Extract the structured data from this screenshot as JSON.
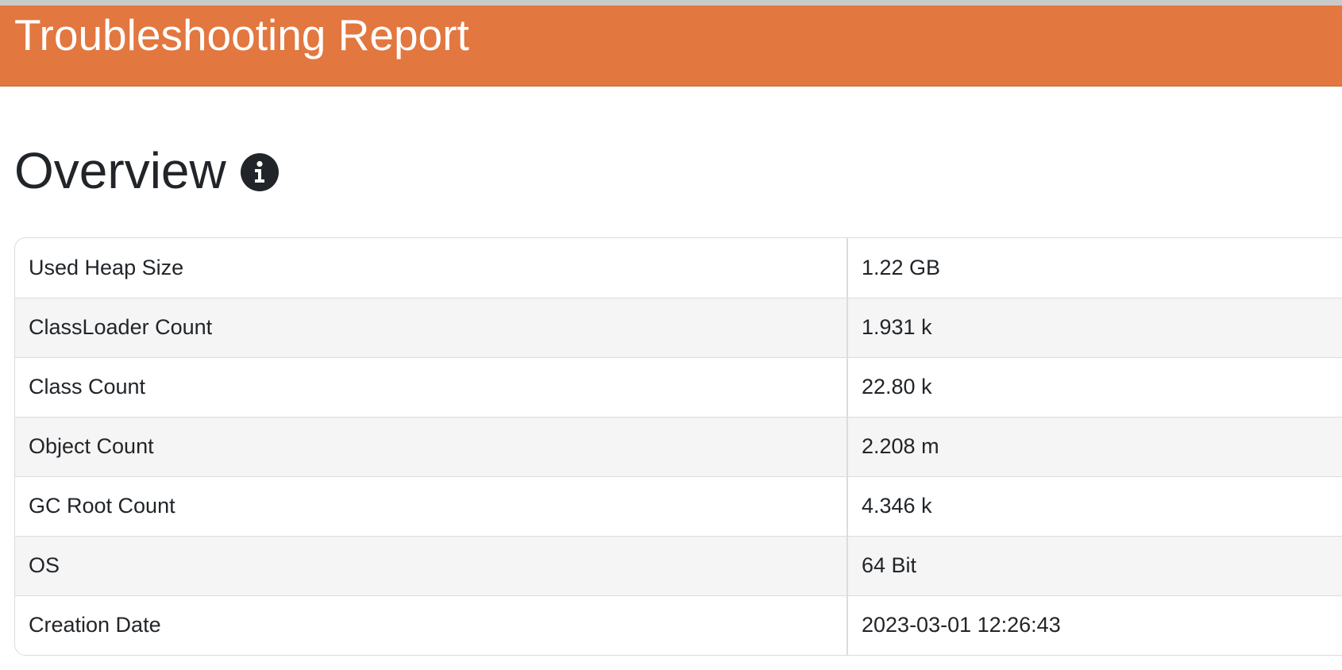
{
  "header": {
    "title": "Troubleshooting Report",
    "background_color": "#e2773f"
  },
  "overview": {
    "title": "Overview",
    "info_icon": "info-circle-icon"
  },
  "overview_table": {
    "rows": [
      {
        "label": "Used Heap Size",
        "value": "1.22 GB"
      },
      {
        "label": "ClassLoader Count",
        "value": "1.931 k"
      },
      {
        "label": "Class Count",
        "value": "22.80 k"
      },
      {
        "label": "Object Count",
        "value": "2.208 m"
      },
      {
        "label": "GC Root Count",
        "value": "4.346 k"
      },
      {
        "label": "OS",
        "value": "64 Bit"
      },
      {
        "label": "Creation Date",
        "value": "2023-03-01 12:26:43"
      }
    ]
  }
}
